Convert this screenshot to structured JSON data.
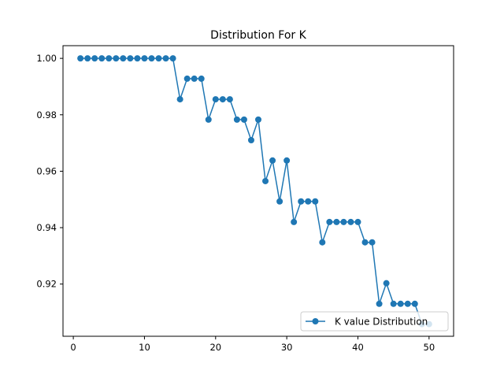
{
  "chart_data": {
    "type": "line",
    "title": "Distribution For K",
    "xlabel": "",
    "ylabel": "",
    "xlim": [
      -1.45,
      53.45
    ],
    "ylim": [
      0.9015,
      1.0045
    ],
    "x_ticks": [
      0,
      10,
      20,
      30,
      40,
      50
    ],
    "x_tick_labels": [
      "0",
      "10",
      "20",
      "30",
      "40",
      "50"
    ],
    "y_ticks": [
      0.92,
      0.94,
      0.96,
      0.98,
      1.0
    ],
    "y_tick_labels": [
      "0.92",
      "0.94",
      "0.96",
      "0.98",
      "1.00"
    ],
    "grid": false,
    "legend_position": "lower right",
    "series": [
      {
        "name": "K value Distribution",
        "color": "#1f77b4",
        "marker": "circle",
        "x": [
          1,
          2,
          3,
          4,
          5,
          6,
          7,
          8,
          9,
          10,
          11,
          12,
          13,
          14,
          15,
          16,
          17,
          18,
          19,
          20,
          21,
          22,
          23,
          24,
          25,
          26,
          27,
          28,
          29,
          30,
          31,
          32,
          33,
          34,
          35,
          36,
          37,
          38,
          39,
          40,
          41,
          42,
          43,
          44,
          45,
          46,
          47,
          48,
          49,
          50
        ],
        "y": [
          1.0,
          1.0,
          1.0,
          1.0,
          1.0,
          1.0,
          1.0,
          1.0,
          1.0,
          1.0,
          1.0,
          1.0,
          1.0,
          1.0,
          0.9855,
          0.9928,
          0.9928,
          0.9928,
          0.9783,
          0.9855,
          0.9855,
          0.9855,
          0.9783,
          0.9783,
          0.971,
          0.9783,
          0.9565,
          0.9638,
          0.9493,
          0.9638,
          0.942,
          0.9493,
          0.9493,
          0.9493,
          0.9348,
          0.942,
          0.942,
          0.942,
          0.942,
          0.942,
          0.9348,
          0.9348,
          0.913,
          0.9203,
          0.913,
          0.913,
          0.913,
          0.913,
          0.9058,
          0.9058
        ]
      }
    ]
  }
}
